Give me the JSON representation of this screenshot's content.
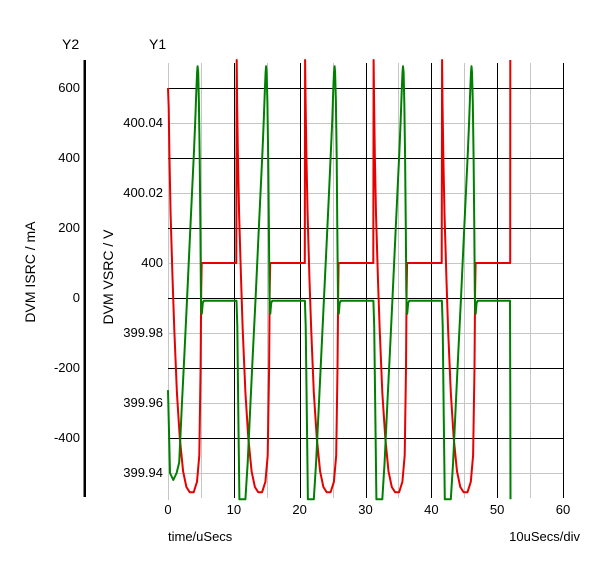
{
  "window": {
    "background": "#ffffff"
  },
  "colors": {
    "vsrc_trace": "#e60000",
    "isrc_trace": "#008000",
    "grid_major": "#000000",
    "grid_minor": "#c6c6c6",
    "axis_line": "#000000",
    "text": "#000000",
    "background": "#ffffff"
  },
  "chart_data": {
    "type": "line",
    "title": "",
    "period_uSecs": 10.4,
    "x_axis": {
      "title": "time/uSecs",
      "scale_label": "10uSecs/div",
      "min": 0,
      "max": 60,
      "major_ticks": [
        0,
        10,
        20,
        30,
        40,
        50,
        60
      ],
      "minor_gridlines": [
        0,
        5,
        15,
        25,
        35,
        45,
        55
      ]
    },
    "y1_axis": {
      "name": "Y1",
      "title": "DVM VSRC / V",
      "unit": "V",
      "ticks": [
        400.04,
        400.02,
        400,
        399.98,
        399.96,
        399.94
      ],
      "tick_labels": [
        "400.04",
        "400.02",
        "400",
        "399.98",
        "399.96",
        "399.94"
      ],
      "visible_range": [
        399.932,
        400.058
      ]
    },
    "y2_axis": {
      "name": "Y2",
      "title": "DVM ISRC / mA",
      "unit": "mA",
      "ticks": [
        600,
        400,
        200,
        0,
        -200,
        -400
      ],
      "visible_range": [
        -575,
        670
      ]
    },
    "series": [
      {
        "name": "DVM VSRC",
        "unit": "V",
        "axis": "y1",
        "color": "#e60000",
        "description": "400 V source voltage: flat at 400 V, periodic sag valleys to ~399.934 V and spikes to ~400.058 V every 10.4 uSecs, data ends at t=52",
        "points": [
          [
            0,
            400.05
          ],
          [
            0.1,
            400.0445
          ],
          [
            0.22,
            400.031
          ],
          [
            0.4,
            400.014
          ],
          [
            0.7,
            399.995
          ],
          [
            0.95,
            399.981
          ],
          [
            1.35,
            399.963
          ],
          [
            1.8,
            399.95
          ],
          [
            2.3,
            399.9405
          ],
          [
            2.8,
            399.936
          ],
          [
            3.3,
            399.9345
          ],
          [
            3.9,
            399.9345
          ],
          [
            4.4,
            399.9375
          ],
          [
            4.75,
            399.945
          ],
          [
            4.95,
            399.97
          ],
          [
            5.05,
            399.992
          ],
          [
            5.12,
            400
          ],
          [
            10.38,
            400
          ],
          [
            10.43,
            400.058
          ],
          [
            10.5,
            400.046
          ],
          [
            10.62,
            400.031
          ],
          [
            10.8,
            400.014
          ],
          [
            11.1,
            399.995
          ],
          [
            11.35,
            399.981
          ],
          [
            11.75,
            399.963
          ],
          [
            12.2,
            399.95
          ],
          [
            12.7,
            399.9405
          ],
          [
            13.2,
            399.936
          ],
          [
            13.7,
            399.9345
          ],
          [
            14.3,
            399.9345
          ],
          [
            14.8,
            399.9375
          ],
          [
            15.15,
            399.945
          ],
          [
            15.35,
            399.97
          ],
          [
            15.45,
            399.992
          ],
          [
            15.52,
            400
          ],
          [
            20.78,
            400
          ],
          [
            20.83,
            400.058
          ],
          [
            20.9,
            400.046
          ],
          [
            21.02,
            400.031
          ],
          [
            21.2,
            400.014
          ],
          [
            21.5,
            399.995
          ],
          [
            21.75,
            399.981
          ],
          [
            22.15,
            399.963
          ],
          [
            22.6,
            399.95
          ],
          [
            23.1,
            399.9405
          ],
          [
            23.6,
            399.936
          ],
          [
            24.1,
            399.9345
          ],
          [
            24.7,
            399.9345
          ],
          [
            25.2,
            399.9375
          ],
          [
            25.55,
            399.945
          ],
          [
            25.75,
            399.97
          ],
          [
            25.85,
            399.992
          ],
          [
            25.92,
            400
          ],
          [
            31.18,
            400
          ],
          [
            31.23,
            400.058
          ],
          [
            31.3,
            400.046
          ],
          [
            31.42,
            400.031
          ],
          [
            31.6,
            400.014
          ],
          [
            31.9,
            399.995
          ],
          [
            32.15,
            399.981
          ],
          [
            32.55,
            399.963
          ],
          [
            33,
            399.95
          ],
          [
            33.5,
            399.9405
          ],
          [
            34,
            399.936
          ],
          [
            34.5,
            399.9345
          ],
          [
            35.1,
            399.9345
          ],
          [
            35.6,
            399.9375
          ],
          [
            35.95,
            399.945
          ],
          [
            36.15,
            399.97
          ],
          [
            36.25,
            399.992
          ],
          [
            36.32,
            400
          ],
          [
            41.58,
            400
          ],
          [
            41.63,
            400.058
          ],
          [
            41.7,
            400.046
          ],
          [
            41.82,
            400.031
          ],
          [
            42,
            400.014
          ],
          [
            42.3,
            399.995
          ],
          [
            42.55,
            399.981
          ],
          [
            42.95,
            399.963
          ],
          [
            43.4,
            399.95
          ],
          [
            43.9,
            399.9405
          ],
          [
            44.4,
            399.936
          ],
          [
            44.9,
            399.9345
          ],
          [
            45.5,
            399.9345
          ],
          [
            46,
            399.9375
          ],
          [
            46.35,
            399.945
          ],
          [
            46.55,
            399.97
          ],
          [
            46.65,
            399.992
          ],
          [
            46.72,
            400
          ],
          [
            51.98,
            400
          ],
          [
            52,
            400.058
          ]
        ]
      },
      {
        "name": "DVM ISRC",
        "unit": "mA",
        "axis": "y2",
        "color": "#008000",
        "description": "Source current: sinusoidal arcs peaking ~660 mA, steep falloff, flat near 0 mA between bursts, off-scale troughs clipped at plot bottom, period 10.4 uSecs, data ends at t=52",
        "points": [
          [
            0,
            -263
          ],
          [
            0.3,
            -500
          ],
          [
            0.8,
            -520
          ],
          [
            1.3,
            -500
          ],
          [
            1.7,
            -470
          ],
          [
            2.1,
            -310
          ],
          [
            2.5,
            -155
          ],
          [
            2.9,
            0
          ],
          [
            3.3,
            160
          ],
          [
            3.65,
            300
          ],
          [
            3.95,
            420
          ],
          [
            4.15,
            510
          ],
          [
            4.3,
            590
          ],
          [
            4.42,
            645
          ],
          [
            4.5,
            662
          ],
          [
            4.58,
            645
          ],
          [
            4.7,
            560
          ],
          [
            4.82,
            400
          ],
          [
            4.92,
            200
          ],
          [
            5,
            20
          ],
          [
            5.06,
            -35
          ],
          [
            5.14,
            -45
          ],
          [
            5.28,
            -14
          ],
          [
            5.45,
            -8
          ],
          [
            10.4,
            -8
          ],
          [
            10.52,
            -80
          ],
          [
            10.7,
            -350
          ],
          [
            10.85,
            -575
          ],
          [
            11.75,
            -575
          ],
          [
            12.1,
            -470
          ],
          [
            12.5,
            -310
          ],
          [
            12.9,
            -155
          ],
          [
            13.3,
            0
          ],
          [
            13.7,
            160
          ],
          [
            14.05,
            300
          ],
          [
            14.35,
            420
          ],
          [
            14.55,
            510
          ],
          [
            14.7,
            590
          ],
          [
            14.82,
            645
          ],
          [
            14.9,
            662
          ],
          [
            14.98,
            645
          ],
          [
            15.1,
            560
          ],
          [
            15.22,
            400
          ],
          [
            15.32,
            200
          ],
          [
            15.4,
            20
          ],
          [
            15.46,
            -35
          ],
          [
            15.54,
            -45
          ],
          [
            15.68,
            -14
          ],
          [
            15.85,
            -8
          ],
          [
            20.8,
            -8
          ],
          [
            20.92,
            -80
          ],
          [
            21.1,
            -350
          ],
          [
            21.25,
            -575
          ],
          [
            22.15,
            -575
          ],
          [
            22.5,
            -470
          ],
          [
            22.9,
            -310
          ],
          [
            23.3,
            -155
          ],
          [
            23.7,
            0
          ],
          [
            24.1,
            160
          ],
          [
            24.45,
            300
          ],
          [
            24.75,
            420
          ],
          [
            24.95,
            510
          ],
          [
            25.1,
            590
          ],
          [
            25.22,
            645
          ],
          [
            25.3,
            662
          ],
          [
            25.38,
            645
          ],
          [
            25.5,
            560
          ],
          [
            25.62,
            400
          ],
          [
            25.72,
            200
          ],
          [
            25.8,
            20
          ],
          [
            25.86,
            -35
          ],
          [
            25.94,
            -45
          ],
          [
            26.08,
            -14
          ],
          [
            26.25,
            -8
          ],
          [
            31.2,
            -8
          ],
          [
            31.32,
            -80
          ],
          [
            31.5,
            -350
          ],
          [
            31.65,
            -575
          ],
          [
            32.55,
            -575
          ],
          [
            32.9,
            -470
          ],
          [
            33.3,
            -310
          ],
          [
            33.7,
            -155
          ],
          [
            34.1,
            0
          ],
          [
            34.5,
            160
          ],
          [
            34.85,
            300
          ],
          [
            35.15,
            420
          ],
          [
            35.35,
            510
          ],
          [
            35.5,
            590
          ],
          [
            35.62,
            645
          ],
          [
            35.7,
            662
          ],
          [
            35.78,
            645
          ],
          [
            35.9,
            560
          ],
          [
            36.02,
            400
          ],
          [
            36.12,
            200
          ],
          [
            36.2,
            20
          ],
          [
            36.26,
            -35
          ],
          [
            36.34,
            -45
          ],
          [
            36.48,
            -14
          ],
          [
            36.65,
            -8
          ],
          [
            41.6,
            -8
          ],
          [
            41.72,
            -80
          ],
          [
            41.9,
            -350
          ],
          [
            42.05,
            -575
          ],
          [
            42.95,
            -575
          ],
          [
            43.3,
            -470
          ],
          [
            43.7,
            -310
          ],
          [
            44.1,
            -155
          ],
          [
            44.5,
            0
          ],
          [
            44.9,
            160
          ],
          [
            45.25,
            300
          ],
          [
            45.55,
            420
          ],
          [
            45.75,
            510
          ],
          [
            45.9,
            590
          ],
          [
            46.02,
            645
          ],
          [
            46.1,
            662
          ],
          [
            46.18,
            645
          ],
          [
            46.3,
            560
          ],
          [
            46.42,
            400
          ],
          [
            46.52,
            200
          ],
          [
            46.6,
            20
          ],
          [
            46.66,
            -35
          ],
          [
            46.74,
            -45
          ],
          [
            46.88,
            -14
          ],
          [
            47.05,
            -8
          ],
          [
            51.95,
            -8
          ],
          [
            51.99,
            -300
          ],
          [
            52.03,
            -575
          ]
        ]
      }
    ]
  }
}
